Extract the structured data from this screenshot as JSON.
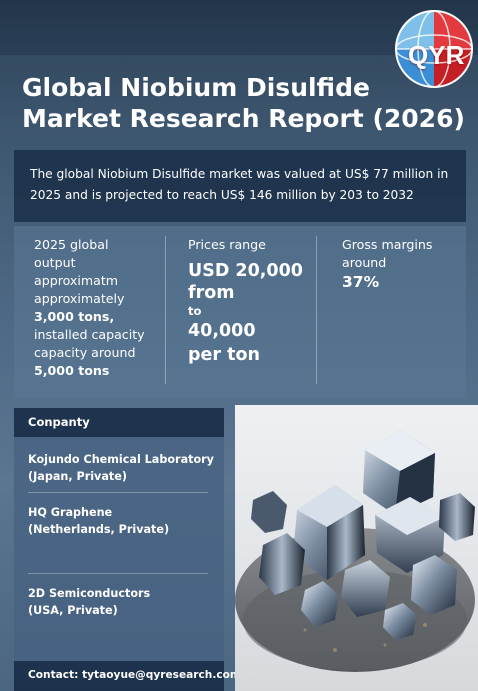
{
  "brand": {
    "logo_text": "QYR"
  },
  "title": {
    "line1": "Global Niobium Disulfide",
    "line2": "Market Research Report (2026)"
  },
  "intro": {
    "line1": "The global Niobium Disulfide market was valued at US$ 77 million in",
    "line2": "2025 and is projected to reach US$ 146 million by 203 to 2032"
  },
  "stats": {
    "output": {
      "l1": "2025 global",
      "l2": "output",
      "l3": "approximatm",
      "l4": "approximately",
      "l5": "3,000 tons,",
      "l6": "installed capacity",
      "l7": "capacity around",
      "l8": "5,000 tons"
    },
    "price": {
      "label": "Prices range",
      "l1": "USD 20,000",
      "l2": "from",
      "l3": "to",
      "l4": "40,000",
      "l5": "per ton"
    },
    "margin": {
      "l1": "Gross margins",
      "l2": "around",
      "value": "37%"
    }
  },
  "companies": {
    "header": "Conpanty",
    "items": [
      {
        "name": "Kojundo Chemical Laboratory",
        "detail": "(Japan, Private)"
      },
      {
        "name": "HQ Graphene",
        "detail": "(Netherlands, Private)"
      },
      {
        "name": "2D Semiconductors",
        "detail": "(USA, Private)"
      }
    ]
  },
  "contact": {
    "text": "Contact: tytaoyue@qyresearch.com"
  },
  "colors": {
    "background": "#4d6884",
    "panel_dark": "#182c46",
    "logo_red": "#d9262b",
    "logo_blue": "#3b8fd6"
  }
}
